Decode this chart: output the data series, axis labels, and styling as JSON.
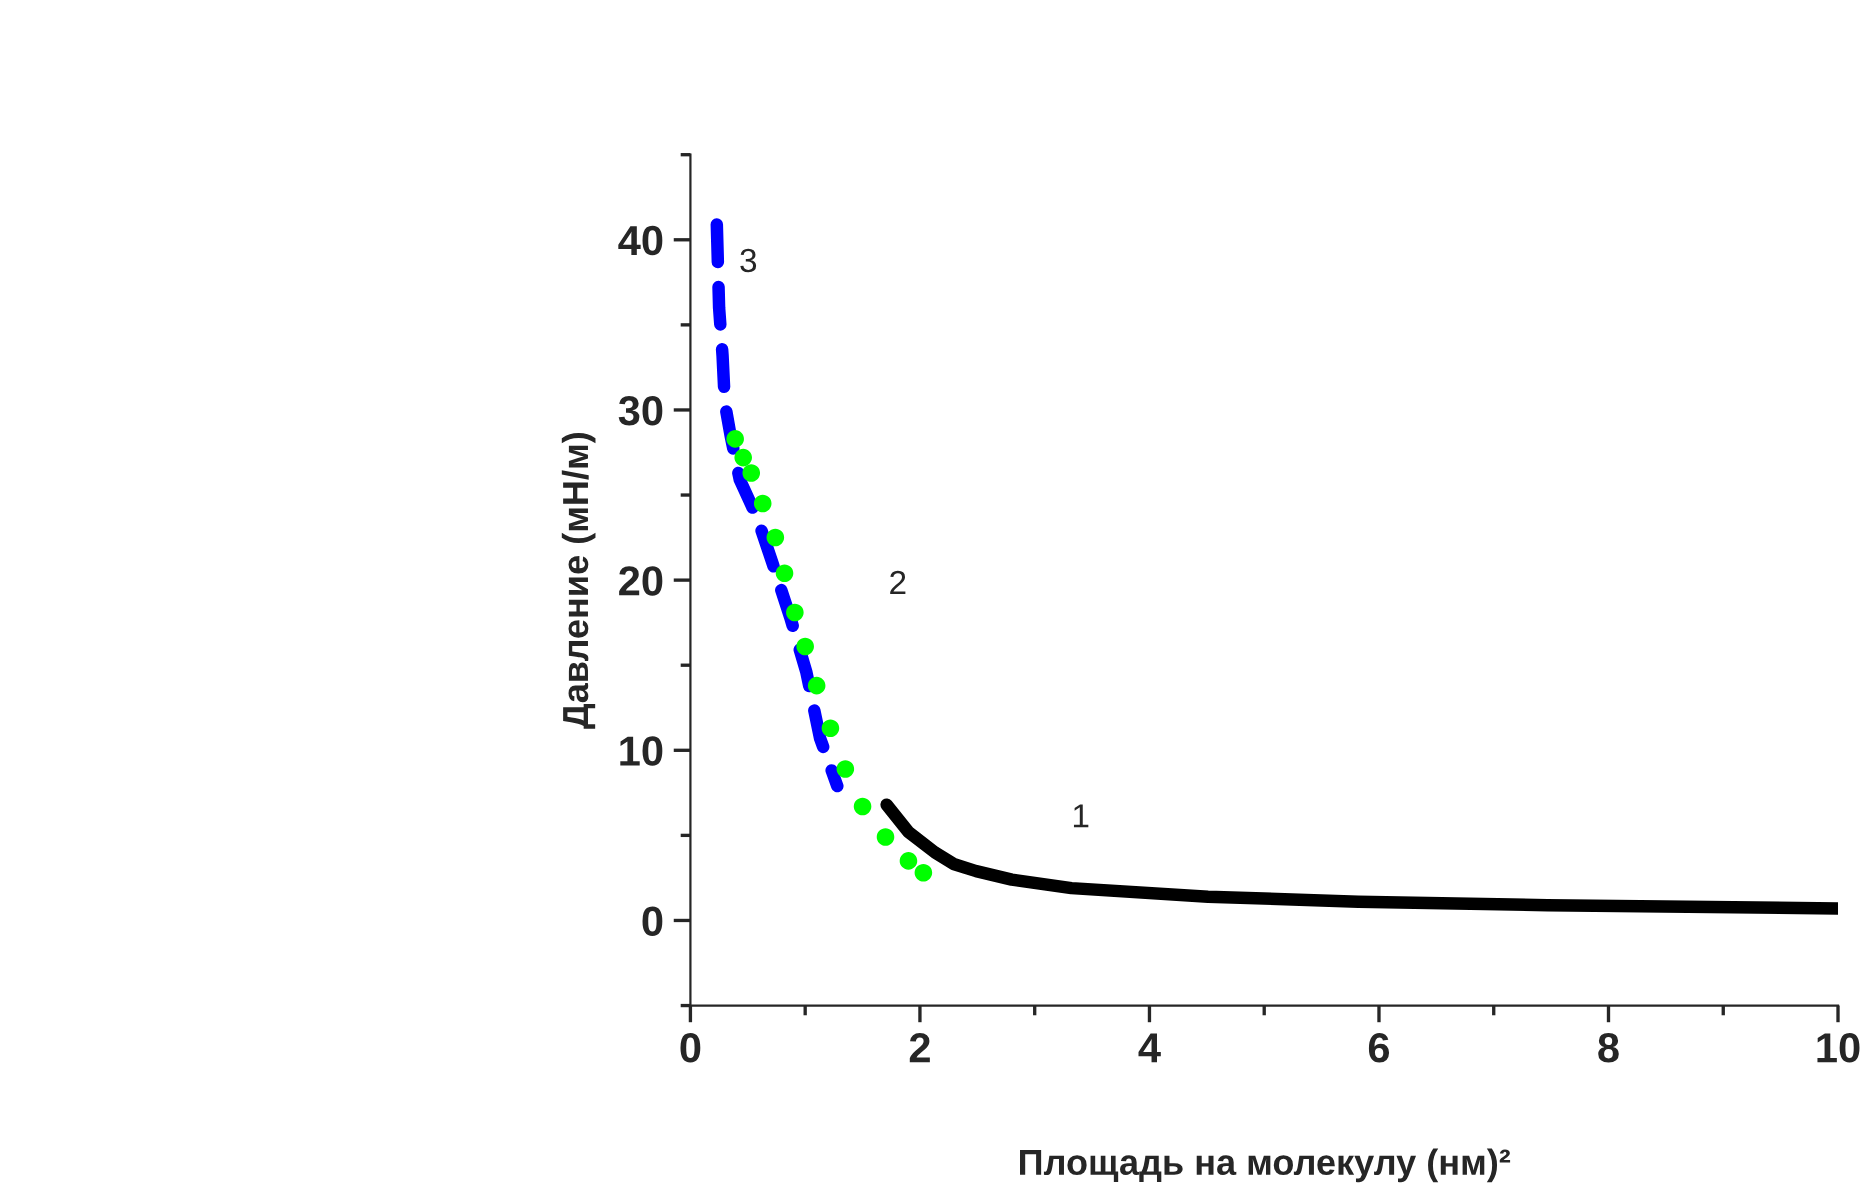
{
  "chart_data": {
    "type": "line",
    "xlabel": "Площадь на молекулу (нм)²",
    "ylabel": "Давление (мН/м)",
    "xlim": [
      0,
      10
    ],
    "ylim": [
      -5,
      45
    ],
    "xticks": [
      0,
      2,
      4,
      6,
      8,
      10
    ],
    "yticks": [
      0,
      10,
      20,
      30,
      40
    ],
    "grid": false,
    "legend": false,
    "series": [
      {
        "name": "1",
        "line_style": "solid",
        "color": "#000000",
        "x": [
          1.71,
          1.9,
          2.13,
          2.3,
          2.49,
          2.8,
          3.32,
          4.51,
          5.82,
          7.47,
          10
        ],
        "values": [
          6.8,
          5.2,
          4.0,
          3.3,
          2.9,
          2.4,
          1.9,
          1.4,
          1.1,
          0.9,
          0.7
        ]
      },
      {
        "name": "2",
        "type": "scatter",
        "marker": "circle",
        "color": "#00ff00",
        "x": [
          0.39,
          0.46,
          0.53,
          0.63,
          0.74,
          0.82,
          0.91,
          1.0,
          1.1,
          1.22,
          1.35,
          1.5,
          1.7,
          1.9,
          2.03
        ],
        "values": [
          28.3,
          27.2,
          26.3,
          24.5,
          22.5,
          20.4,
          18.1,
          16.1,
          13.8,
          11.3,
          8.9,
          6.7,
          4.9,
          3.5,
          2.8
        ]
      },
      {
        "name": "3",
        "line_style": "dashed",
        "color": "#0000ff",
        "x": [
          0.23,
          0.25,
          0.28,
          0.3,
          0.35,
          0.43,
          0.58,
          0.72,
          0.87,
          1.01,
          1.13,
          1.28
        ],
        "values": [
          40.9,
          36.0,
          33.2,
          30.4,
          28.5,
          25.9,
          23.7,
          20.9,
          17.8,
          14.6,
          10.7,
          7.9
        ]
      }
    ]
  }
}
